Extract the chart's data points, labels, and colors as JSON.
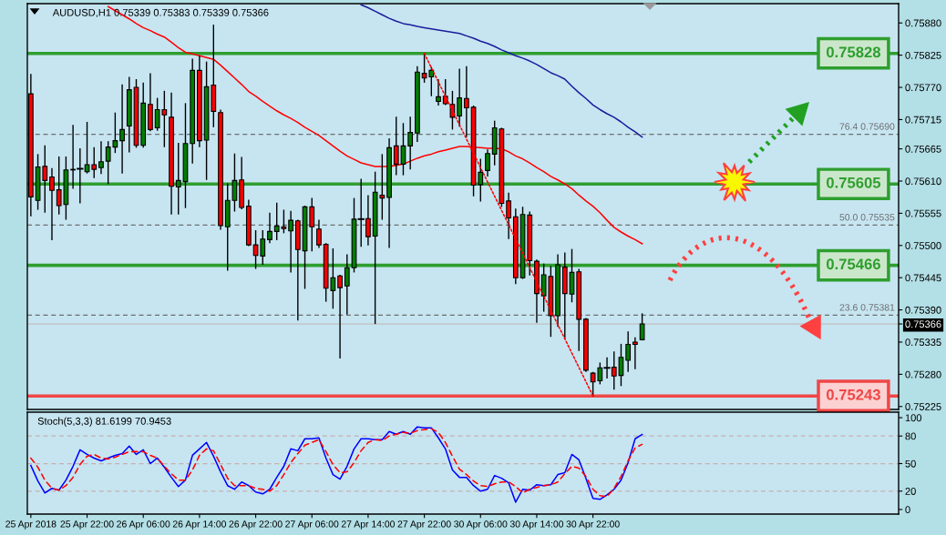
{
  "chart_data": [
    {
      "type": "candlestick",
      "title": "AUDUSD,H1 0.75339 0.75383 0.75339 0.75366",
      "categories": [
        "25 Apr 2018",
        null,
        null,
        null,
        null,
        null,
        null,
        null,
        "25 Apr 22:00",
        null,
        null,
        null,
        null,
        null,
        null,
        null,
        "26 Apr 06:00",
        null,
        null,
        null,
        null,
        null,
        null,
        null,
        "26 Apr 14:00",
        null,
        null,
        null,
        null,
        null,
        null,
        null,
        "26 Apr 22:00",
        null,
        null,
        null,
        null,
        null,
        null,
        null,
        "27 Apr 06:00",
        null,
        null,
        null,
        null,
        null,
        null,
        null,
        "27 Apr 14:00",
        null,
        null,
        null,
        null,
        null,
        null,
        null,
        "27 Apr 22:00",
        null,
        null,
        null,
        null,
        null,
        null,
        null,
        "30 Apr 06:00",
        null,
        null,
        null,
        null,
        null,
        null,
        null,
        "30 Apr 14:00",
        null,
        null,
        null,
        null,
        null,
        null,
        null,
        "30 Apr 22:00",
        null,
        null,
        null,
        null,
        null,
        null,
        null,
        null,
        null,
        null,
        null,
        null,
        null,
        null,
        null,
        null,
        null,
        null,
        null,
        null,
        null,
        null,
        null,
        null,
        null,
        null,
        null,
        null,
        null,
        null,
        null,
        null,
        null,
        null,
        null,
        null,
        null,
        null,
        null,
        null,
        null,
        null,
        null
      ],
      "ohlc": [
        [
          0.75759,
          0.75792,
          0.75551,
          0.75583
        ],
        [
          0.75577,
          0.75655,
          0.75562,
          0.75634
        ],
        [
          0.75635,
          0.7567,
          0.75557,
          0.75611
        ],
        [
          0.75617,
          0.75631,
          0.7551,
          0.75594
        ],
        [
          0.75595,
          0.75651,
          0.75554,
          0.75568
        ],
        [
          0.7557,
          0.75651,
          0.75545,
          0.75629
        ],
        [
          0.75629,
          0.75705,
          0.75598,
          0.7563
        ],
        [
          0.75631,
          0.75665,
          0.75573,
          0.75631
        ],
        [
          0.75626,
          0.7571,
          0.75624,
          0.75638
        ],
        [
          0.75638,
          0.75667,
          0.75616,
          0.7563
        ],
        [
          0.75633,
          0.75677,
          0.75623,
          0.75643
        ],
        [
          0.75644,
          0.75677,
          0.75606,
          0.75668
        ],
        [
          0.75668,
          0.75726,
          0.75659,
          0.75679
        ],
        [
          0.75679,
          0.75774,
          0.75624,
          0.75698
        ],
        [
          0.75704,
          0.75787,
          0.7566,
          0.75766
        ],
        [
          0.7577,
          0.75783,
          0.75668,
          0.75671
        ],
        [
          0.75671,
          0.75777,
          0.75668,
          0.75743
        ],
        [
          0.75741,
          0.75793,
          0.75696,
          0.75698
        ],
        [
          0.75701,
          0.75751,
          0.75697,
          0.75732
        ],
        [
          0.75732,
          0.75763,
          0.75669,
          0.75723
        ],
        [
          0.75719,
          0.7576,
          0.75554,
          0.75601
        ],
        [
          0.756,
          0.75674,
          0.75554,
          0.75611
        ],
        [
          0.75609,
          0.75742,
          0.75565,
          0.75674
        ],
        [
          0.75674,
          0.75818,
          0.75641,
          0.75799
        ],
        [
          0.75799,
          0.75823,
          0.75669,
          0.75679
        ],
        [
          0.7568,
          0.75813,
          0.75613,
          0.75771
        ],
        [
          0.75774,
          0.75876,
          0.75703,
          0.75729
        ],
        [
          0.75727,
          0.75731,
          0.75528,
          0.75534
        ],
        [
          0.75532,
          0.75605,
          0.75458,
          0.75577
        ],
        [
          0.75577,
          0.75656,
          0.75559,
          0.75611
        ],
        [
          0.75612,
          0.7565,
          0.75563,
          0.75565
        ],
        [
          0.75567,
          0.75577,
          0.755,
          0.75501
        ],
        [
          0.75501,
          0.75525,
          0.75461,
          0.75483
        ],
        [
          0.75482,
          0.75525,
          0.75468,
          0.75511
        ],
        [
          0.7551,
          0.75555,
          0.75505,
          0.75524
        ],
        [
          0.75524,
          0.75572,
          0.7551,
          0.75533
        ],
        [
          0.75532,
          0.7556,
          0.75522,
          0.75529
        ],
        [
          0.75525,
          0.75558,
          0.75455,
          0.75543
        ],
        [
          0.75542,
          0.75543,
          0.75373,
          0.75493
        ],
        [
          0.75491,
          0.75567,
          0.75427,
          0.75566
        ],
        [
          0.75566,
          0.7558,
          0.75491,
          0.75532
        ],
        [
          0.75528,
          0.75543,
          0.75497,
          0.75501
        ],
        [
          0.75502,
          0.75503,
          0.75405,
          0.75427
        ],
        [
          0.75423,
          0.75494,
          0.75393,
          0.75445
        ],
        [
          0.75448,
          0.75449,
          0.75308,
          0.75428
        ],
        [
          0.75431,
          0.75484,
          0.75383,
          0.75462
        ],
        [
          0.75462,
          0.7558,
          0.75455,
          0.75545
        ],
        [
          0.75545,
          0.75613,
          0.75499,
          0.75545
        ],
        [
          0.75546,
          0.75585,
          0.75501,
          0.75515
        ],
        [
          0.75516,
          0.75625,
          0.75367,
          0.75591
        ],
        [
          0.75586,
          0.75655,
          0.75545,
          0.75581
        ],
        [
          0.75582,
          0.75682,
          0.75497,
          0.75667
        ],
        [
          0.7567,
          0.75719,
          0.75621,
          0.75639
        ],
        [
          0.75639,
          0.75708,
          0.75621,
          0.7567
        ],
        [
          0.7567,
          0.75719,
          0.75631,
          0.75693
        ],
        [
          0.75692,
          0.75805,
          0.75678,
          0.75796
        ],
        [
          0.75794,
          0.75828,
          0.75779,
          0.75786
        ],
        [
          0.75788,
          0.75804,
          0.75756,
          0.75799
        ],
        [
          0.75746,
          0.75783,
          0.7574,
          0.75754
        ],
        [
          0.75755,
          0.75783,
          0.75741,
          0.75742
        ],
        [
          0.75741,
          0.75763,
          0.75699,
          0.75719
        ],
        [
          0.75721,
          0.75801,
          0.75704,
          0.75752
        ],
        [
          0.75751,
          0.75805,
          0.75686,
          0.75735
        ],
        [
          0.75736,
          0.75738,
          0.75585,
          0.75603
        ],
        [
          0.75604,
          0.75647,
          0.75576,
          0.75625
        ],
        [
          0.75628,
          0.75663,
          0.75619,
          0.75657
        ],
        [
          0.75656,
          0.75712,
          0.75638,
          0.75701
        ],
        [
          0.75699,
          0.757,
          0.75567,
          0.75572
        ],
        [
          0.75576,
          0.75589,
          0.75512,
          0.75547
        ],
        [
          0.75549,
          0.75562,
          0.75435,
          0.75445
        ],
        [
          0.75445,
          0.75565,
          0.75444,
          0.75553
        ],
        [
          0.75552,
          0.75557,
          0.7545,
          0.75474
        ],
        [
          0.75473,
          0.75475,
          0.75369,
          0.75418
        ],
        [
          0.75414,
          0.75468,
          0.75388,
          0.7545
        ],
        [
          0.75447,
          0.75464,
          0.75345,
          0.7538
        ],
        [
          0.7538,
          0.75484,
          0.75362,
          0.75467
        ],
        [
          0.75463,
          0.75487,
          0.75342,
          0.75418
        ],
        [
          0.75417,
          0.75493,
          0.75404,
          0.75454
        ],
        [
          0.75455,
          0.75459,
          0.75321,
          0.75374
        ],
        [
          0.75374,
          0.75375,
          0.75285,
          0.75287
        ],
        [
          0.75282,
          0.75283,
          0.75243,
          0.75267
        ],
        [
          0.75269,
          0.75299,
          0.75264,
          0.75291
        ],
        [
          0.75291,
          0.75308,
          0.75274,
          0.75291
        ],
        [
          0.75292,
          0.75318,
          0.75255,
          0.75277
        ],
        [
          0.75278,
          0.75331,
          0.75261,
          0.75309
        ],
        [
          0.75304,
          0.75352,
          0.75285,
          0.75331
        ],
        [
          0.75335,
          0.75342,
          0.7529,
          0.75331
        ],
        [
          0.75339,
          0.75383,
          0.75339,
          0.75366
        ],
        null,
        null,
        null,
        null,
        null,
        null,
        null,
        null,
        null,
        null,
        null,
        null,
        null,
        null,
        null,
        null,
        null,
        null,
        null,
        null,
        null,
        null,
        null,
        null,
        null,
        null,
        null,
        null,
        null,
        null,
        null,
        null,
        null,
        null,
        null,
        null
      ],
      "colors": [
        "#ff0000",
        "#008000",
        "#ff0000",
        "#ff0000",
        "#ff0000",
        "#008000",
        "#008000",
        "#000000",
        "#008000",
        "#ff0000",
        "#008000",
        "#008000",
        "#008000",
        "#008000",
        "#008000",
        "#ff0000",
        "#008000",
        "#ff0000",
        "#008000",
        "#ff0000",
        "#ff0000",
        "#008000",
        "#008000",
        "#008000",
        "#ff0000",
        "#008000",
        "#ff0000",
        "#ff0000",
        "#008000",
        "#008000",
        "#ff0000",
        "#ff0000",
        "#ff0000",
        "#008000",
        "#008000",
        "#008000",
        "#ff0000",
        "#008000",
        "#ff0000",
        "#008000",
        "#ff0000",
        "#ff0000",
        "#ff0000",
        "#008000",
        "#ff0000",
        "#008000",
        "#008000",
        "#000000",
        "#ff0000",
        "#008000",
        "#ff0000",
        "#008000",
        "#ff0000",
        "#008000",
        "#008000",
        "#008000",
        "#ff0000",
        "#008000",
        "#008000",
        "#ff0000",
        "#ff0000",
        "#008000",
        "#ff0000",
        "#ff0000",
        "#008000",
        "#008000",
        "#008000",
        "#ff0000",
        "#ff0000",
        "#ff0000",
        "#008000",
        "#ff0000",
        "#ff0000",
        "#008000",
        "#ff0000",
        "#008000",
        "#ff0000",
        "#008000",
        "#ff0000",
        "#ff0000",
        "#ff0000",
        "#008000",
        "#000000",
        "#ff0000",
        "#008000",
        "#008000",
        "#ff0000",
        "#008000",
        null,
        null,
        null,
        null,
        null,
        null,
        null,
        null,
        null,
        null,
        null,
        null,
        null,
        null,
        null,
        null,
        null,
        null,
        null,
        null,
        null,
        null,
        null,
        null,
        null,
        null,
        null,
        null,
        null,
        null,
        null,
        null,
        null,
        null,
        null,
        null
      ],
      "series": [
        {
          "type": "line",
          "color": "#ff0000",
          "values": [
            null,
            null,
            null,
            null,
            null,
            null,
            null,
            null,
            null,
            null,
            null,
            0.75908,
            0.75901,
            0.75894,
            0.75887,
            0.75879,
            0.75872,
            0.75867,
            0.75861,
            0.75856,
            0.75847,
            0.75838,
            0.7583,
            0.75827,
            0.75824,
            0.75821,
            0.75818,
            0.75808,
            0.75797,
            0.75786,
            0.75775,
            0.75763,
            0.75755,
            0.75746,
            0.75738,
            0.7573,
            0.75723,
            0.75717,
            0.7571,
            0.75702,
            0.75695,
            0.75688,
            0.75679,
            0.7567,
            0.75661,
            0.75653,
            0.75647,
            0.75641,
            0.75638,
            0.75635,
            0.75635,
            0.75635,
            0.75637,
            0.75639,
            0.75644,
            0.75649,
            0.75653,
            0.75656,
            0.7566,
            0.75663,
            0.75666,
            0.75669,
            0.75669,
            0.75668,
            0.75667,
            0.75666,
            0.75666,
            0.75665,
            0.7566,
            0.75653,
            0.75648,
            0.75641,
            0.75633,
            0.75626,
            0.75618,
            0.75612,
            0.75605,
            0.75597,
            0.75586,
            0.75576,
            0.75567,
            0.75556,
            0.75543,
            0.75531,
            0.75523,
            0.75516,
            0.7551,
            0.75503,
            null,
            null,
            null,
            null,
            null,
            null,
            null,
            null,
            null,
            null,
            null,
            null,
            null,
            null,
            null,
            null,
            null,
            null,
            null,
            null,
            null,
            null,
            null,
            null,
            null,
            null,
            null,
            null,
            null,
            null,
            null,
            null,
            null,
            null,
            null,
            null
          ]
        },
        {
          "type": "line",
          "color": "#1c1c9c",
          "values": [
            null,
            null,
            null,
            null,
            null,
            null,
            null,
            null,
            null,
            null,
            null,
            null,
            null,
            null,
            null,
            null,
            null,
            null,
            null,
            null,
            null,
            null,
            null,
            null,
            null,
            null,
            null,
            null,
            null,
            null,
            null,
            null,
            null,
            null,
            null,
            null,
            null,
            null,
            null,
            null,
            null,
            null,
            null,
            null,
            null,
            null,
            null,
            0.75911,
            0.75906,
            0.759,
            0.75894,
            0.75888,
            0.75883,
            0.75879,
            0.75877,
            0.75874,
            0.75872,
            0.7587,
            0.75868,
            0.75866,
            0.75864,
            0.75862,
            0.75858,
            0.75854,
            0.75849,
            0.75845,
            0.7584,
            0.75834,
            0.75829,
            0.75824,
            0.7582,
            0.75815,
            0.75809,
            0.75802,
            0.75795,
            0.7579,
            0.75784,
            0.75772,
            0.75761,
            0.75751,
            0.7574,
            0.75732,
            0.75725,
            0.75719,
            0.75711,
            0.75702,
            0.75694,
            0.75685,
            null,
            null,
            null,
            null,
            null,
            null,
            null,
            null,
            null,
            null,
            null,
            null,
            null,
            null,
            null,
            null,
            null,
            null,
            null,
            null,
            null,
            null,
            null,
            null,
            null,
            null,
            null,
            null,
            null,
            null,
            null,
            null,
            null,
            null,
            null,
            null
          ]
        },
        {
          "type": "line",
          "color": "#ff0000",
          "line_style": "dotted",
          "x": [
            "27 Apr 22:00",
            "30 Apr 22:00"
          ],
          "values": [
            0.75828,
            0.75243
          ]
        }
      ],
      "ylim": [
        0.7522,
        0.75913
      ],
      "yticks": [
        {
          "value": 0.7588,
          "label": "0.75880"
        },
        0.75825,
        {
          "value": 0.7577,
          "label": "0.75770"
        },
        0.75715,
        0.75665,
        {
          "value": 0.7561,
          "label": "0.75610"
        },
        0.75555,
        {
          "value": 0.755,
          "label": "0.75500"
        },
        0.75445,
        {
          "value": 0.7539,
          "label": "0.75390"
        },
        0.75366,
        0.75335,
        {
          "value": 0.7528,
          "label": "0.75280"
        },
        0.75225
      ],
      "ref_lines": [
        {
          "axis": "y",
          "value": 0.75828,
          "label": "0.75828",
          "color": "#2e9e2e"
        },
        {
          "axis": "y",
          "value": 0.75605,
          "label": "0.75605",
          "color": "#2e9e2e"
        },
        {
          "axis": "y",
          "value": 0.75466,
          "label": "0.75466",
          "color": "#2e9e2e"
        },
        {
          "axis": "y",
          "value": 0.75243,
          "label": "0.75243",
          "color": "#f04646"
        },
        {
          "axis": "y",
          "value": 0.7569,
          "label": "76.4 0.75690",
          "color": "#6e6e6e",
          "line_style": "dashed"
        },
        {
          "axis": "y",
          "value": 0.75535,
          "label": "50.0 0.75535",
          "color": "#6e6e6e",
          "line_style": "dashed"
        },
        {
          "axis": "y",
          "value": 0.75381,
          "label": "23.6 0.75381",
          "color": "#6e6e6e",
          "line_style": "dashed"
        },
        {
          "axis": "y",
          "value": 0.75366,
          "color": "#c0c0c0"
        }
      ],
      "tick_labels": "y"
    },
    {
      "type": "line",
      "title": "Stoch(5,3,3) 81.6199 70.9453",
      "categories": [
        "25 Apr 2018",
        null,
        null,
        null,
        null,
        null,
        null,
        null,
        "25 Apr 22:00",
        null,
        null,
        null,
        null,
        null,
        null,
        null,
        "26 Apr 06:00",
        null,
        null,
        null,
        null,
        null,
        null,
        null,
        "26 Apr 14:00",
        null,
        null,
        null,
        null,
        null,
        null,
        null,
        "26 Apr 22:00",
        null,
        null,
        null,
        null,
        null,
        null,
        null,
        "27 Apr 06:00",
        null,
        null,
        null,
        null,
        null,
        null,
        null,
        "27 Apr 14:00",
        null,
        null,
        null,
        null,
        null,
        null,
        null,
        "27 Apr 22:00",
        null,
        null,
        null,
        null,
        null,
        null,
        null,
        "30 Apr 06:00",
        null,
        null,
        null,
        null,
        null,
        null,
        null,
        "30 Apr 14:00",
        null,
        null,
        null,
        null,
        null,
        null,
        null,
        "30 Apr 22:00",
        null,
        null,
        null,
        null,
        null,
        null,
        null,
        null,
        null,
        null,
        null,
        null,
        null,
        null,
        null,
        null,
        null,
        null,
        null,
        null,
        null,
        null,
        null,
        null,
        null,
        null,
        null,
        null,
        null,
        null,
        null,
        null,
        null,
        null,
        null,
        null,
        null,
        null,
        null,
        null,
        null,
        null,
        null
      ],
      "series": [
        {
          "color": "#0000ff",
          "values": [
            48,
            31,
            18,
            23,
            21,
            32,
            47,
            65,
            60,
            56,
            53,
            56,
            59,
            61,
            69,
            60,
            65,
            50,
            56,
            46,
            35,
            25,
            32,
            59,
            66,
            73,
            58,
            41,
            26,
            22,
            30,
            26,
            19,
            17,
            22,
            35,
            47,
            66,
            64,
            77,
            77,
            78,
            56,
            38,
            33,
            47,
            66,
            77,
            77,
            76,
            76,
            85,
            82,
            85,
            82,
            90,
            89,
            89,
            78,
            66,
            43,
            35,
            35,
            26,
            20,
            22,
            37,
            34,
            29,
            8,
            22,
            21,
            27,
            26,
            27,
            38,
            40,
            60,
            54,
            34,
            12,
            11,
            16,
            22,
            32,
            51,
            77,
            81.6199,
            null,
            null,
            null,
            null,
            null,
            null,
            null,
            null,
            null,
            null,
            null,
            null,
            null,
            null,
            null,
            null,
            null,
            null,
            null,
            null,
            null,
            null,
            null,
            null,
            null,
            null,
            null,
            null,
            null,
            null,
            null,
            null,
            null,
            null,
            null,
            null
          ]
        },
        {
          "color": "#ff0000",
          "line_style": "dashed",
          "values": [
            56,
            46,
            32,
            23,
            21,
            26,
            35,
            49,
            58,
            60,
            56,
            55,
            57,
            60,
            63,
            63,
            63,
            59,
            56,
            47,
            39,
            32,
            32,
            43,
            59,
            66,
            64,
            49,
            34,
            26,
            26,
            26,
            23,
            22,
            20,
            26,
            38,
            51,
            61,
            70,
            73,
            76,
            63,
            49,
            40,
            41,
            51,
            64,
            73,
            76,
            75,
            80,
            82,
            84,
            83,
            86,
            87,
            88,
            84,
            73,
            58,
            44,
            38,
            31,
            26,
            25,
            28,
            30,
            30,
            25,
            18,
            22,
            24,
            26,
            27,
            30,
            39,
            47,
            45,
            36,
            22,
            15,
            14,
            23,
            36,
            53,
            67,
            70.9453,
            null,
            null,
            null,
            null,
            null,
            null,
            null,
            null,
            null,
            null,
            null,
            null,
            null,
            null,
            null,
            null,
            null,
            null,
            null,
            null,
            null,
            null,
            null,
            null,
            null,
            null,
            null,
            null,
            null,
            null,
            null,
            null,
            null,
            null,
            null,
            null
          ]
        }
      ],
      "ylim": [
        -5,
        106
      ],
      "yticks": [
        0,
        20,
        50,
        80,
        100
      ],
      "ref_lines": [
        {
          "axis": "y",
          "value": 80,
          "color": "#c8b0b0",
          "line_style": "dashed"
        },
        {
          "axis": "y",
          "value": 50,
          "color": "#c8b0b0",
          "line_style": "dashed"
        },
        {
          "axis": "y",
          "value": 20,
          "color": "#c8b0b0",
          "line_style": "dashed"
        }
      ]
    }
  ]
}
